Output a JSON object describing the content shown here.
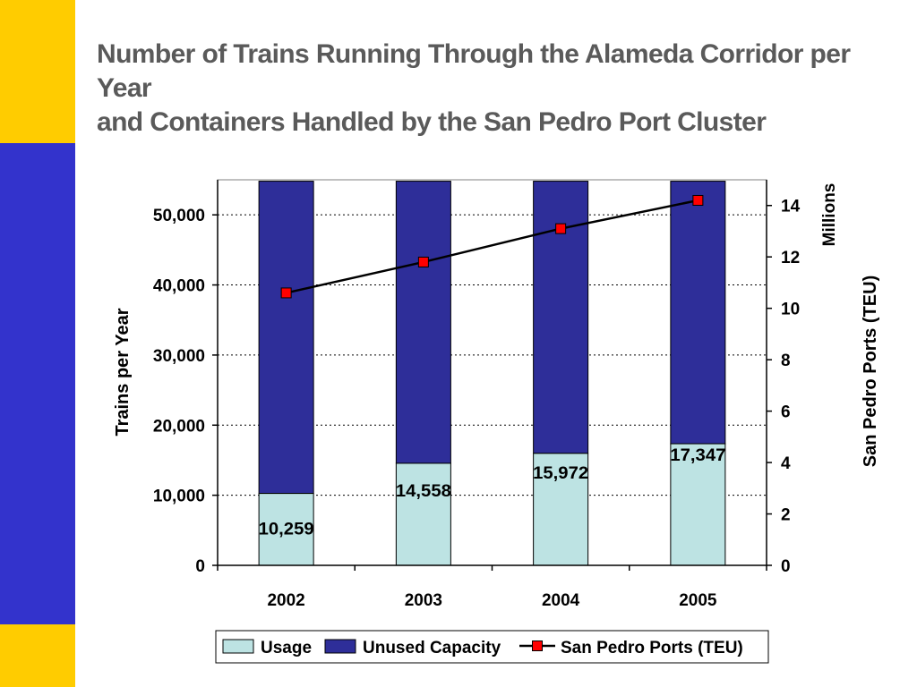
{
  "slide": {
    "title_lines": [
      "Number of Trains Running Through the Alameda Corridor per Year",
      "and Containers Handled by the San Pedro Port Cluster"
    ]
  },
  "colors": {
    "sidebar_yellow": "#FFCC00",
    "sidebar_blue": "#3333CC",
    "title_text": "#5A5A5A",
    "usage_fill": "#BDE3E3",
    "unused_fill": "#2E2E99",
    "teu_line": "#000000",
    "teu_marker": "#FF0000"
  },
  "chart_data": {
    "type": "bar",
    "stacked": true,
    "categories": [
      "2002",
      "2003",
      "2004",
      "2005"
    ],
    "series": [
      {
        "name": "Usage",
        "values": [
          10259,
          14558,
          15972,
          17347
        ],
        "data_labels": [
          "10,259",
          "14,558",
          "15,972",
          "17,347"
        ]
      },
      {
        "name": "Unused Capacity",
        "values": [
          44541,
          40242,
          38828,
          37453
        ]
      }
    ],
    "line_series": {
      "name": "San Pedro Ports (TEU)",
      "axis": "right",
      "values": [
        10.6,
        11.8,
        13.1,
        14.2
      ]
    },
    "ylabel": "Trains per Year",
    "ylim": [
      0,
      55000
    ],
    "yticks": [
      0,
      10000,
      20000,
      30000,
      40000,
      50000
    ],
    "ytick_labels": [
      "0",
      "10,000",
      "20,000",
      "30,000",
      "40,000",
      "50,000"
    ],
    "y2label": "San Pedro Ports (TEU)",
    "y2unit": "Millions",
    "y2lim": [
      0,
      15
    ],
    "y2ticks": [
      0,
      2,
      4,
      6,
      8,
      10,
      12,
      14
    ],
    "y2tick_labels": [
      "0",
      "2",
      "4",
      "6",
      "8",
      "10",
      "12",
      "14"
    ],
    "grid": "horizontal dotted",
    "legend_position": "bottom",
    "legend": [
      "Usage",
      "Unused Capacity",
      "San Pedro Ports (TEU)"
    ]
  }
}
